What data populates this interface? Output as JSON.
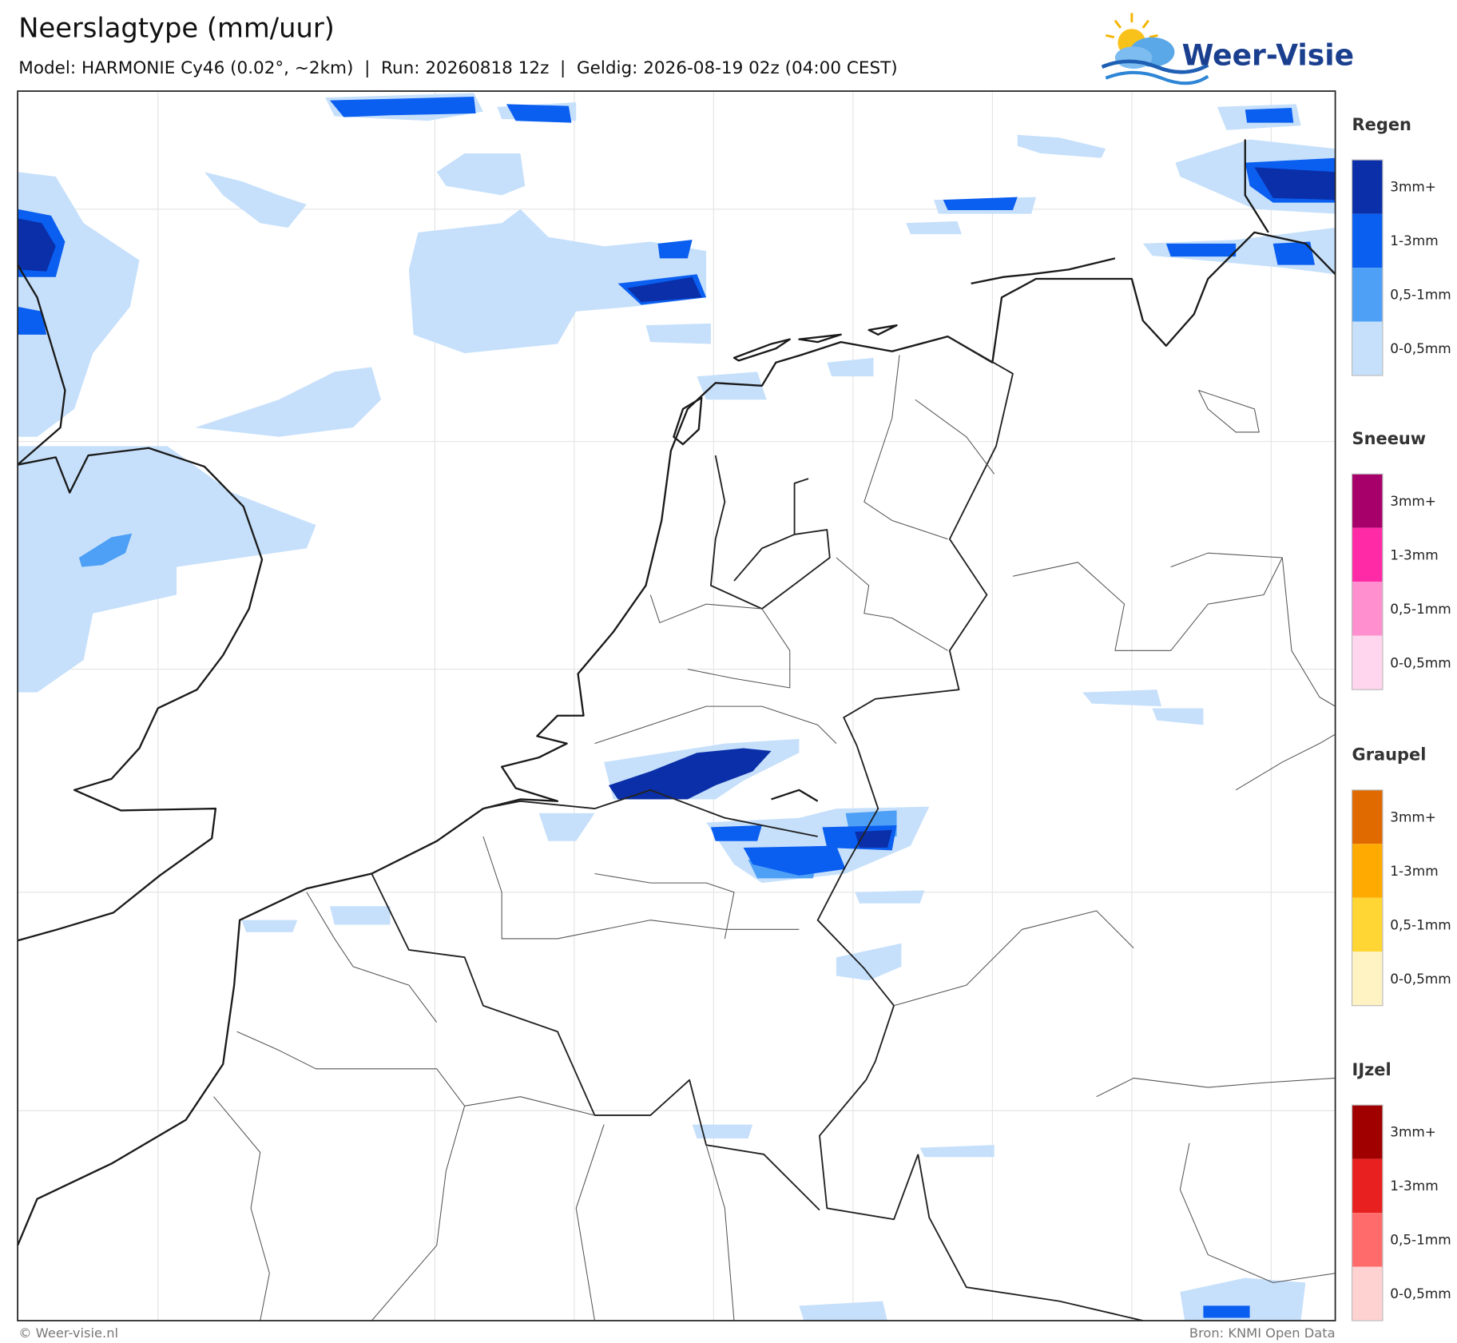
{
  "header": {
    "title": "Neerslagtype (mm/uur)",
    "subtitle": "Model: HARMONIE Cy46 (0.02°, ~2km)  |  Run: 20260818 12z  |  Geldig: 2026-08-19 02z (04:00 CEST)",
    "logo": "Weer-Visie"
  },
  "legend": [
    {
      "title": "Regen",
      "items": [
        {
          "label": "3mm+",
          "color": "#0a2fa8"
        },
        {
          "label": "1-3mm",
          "color": "#0a5ef0"
        },
        {
          "label": "0,5-1mm",
          "color": "#4da0f5"
        },
        {
          "label": "0-0,5mm",
          "color": "#c6e0fb"
        }
      ]
    },
    {
      "title": "Sneeuw",
      "items": [
        {
          "label": "3mm+",
          "color": "#a8006a"
        },
        {
          "label": "1-3mm",
          "color": "#ff2aa6"
        },
        {
          "label": "0,5-1mm",
          "color": "#ff8fce"
        },
        {
          "label": "0-0,5mm",
          "color": "#ffd6ee"
        }
      ]
    },
    {
      "title": "Graupel",
      "items": [
        {
          "label": "3mm+",
          "color": "#e06900"
        },
        {
          "label": "1-3mm",
          "color": "#ffaa00"
        },
        {
          "label": "0,5-1mm",
          "color": "#ffd633"
        },
        {
          "label": "0-0,5mm",
          "color": "#fff3c4"
        }
      ]
    },
    {
      "title": "IJzel",
      "items": [
        {
          "label": "3mm+",
          "color": "#a00000"
        },
        {
          "label": "1-3mm",
          "color": "#e82020"
        },
        {
          "label": "0,5-1mm",
          "color": "#ff6b6b"
        },
        {
          "label": "0-0,5mm",
          "color": "#ffd2d2"
        }
      ]
    }
  ],
  "footer": {
    "left": "© Weer-visie.nl",
    "right": "Bron: KNMI Open Data"
  }
}
